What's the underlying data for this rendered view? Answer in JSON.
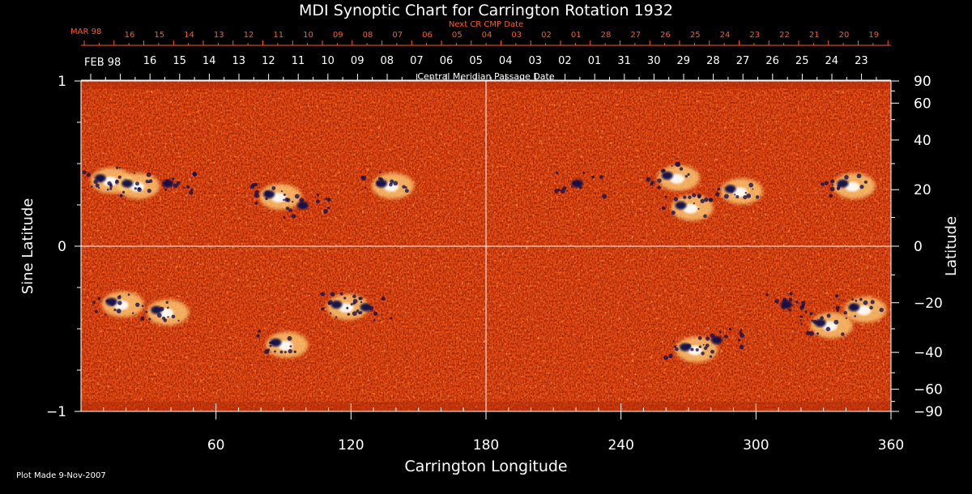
{
  "chart_data": {
    "type": "heatmap",
    "title": "MDI Synoptic Chart for Carrington Rotation 1932",
    "xlabel": "Carrington Longitude",
    "ylabel_left": "Sine Latitude",
    "ylabel_right": "Latitude",
    "xlim": [
      0,
      360
    ],
    "ylim_sine": [
      -1,
      1
    ],
    "x_ticks": [
      60,
      120,
      180,
      240,
      300,
      360
    ],
    "y_ticks_left": [
      {
        "value": 1,
        "label": "1"
      },
      {
        "value": 0,
        "label": "0"
      },
      {
        "value": -1,
        "label": "−1"
      }
    ],
    "y_ticks_right": [
      {
        "lat": 90,
        "label": "90"
      },
      {
        "lat": 60,
        "label": "60"
      },
      {
        "lat": 40,
        "label": "40"
      },
      {
        "lat": 20,
        "label": "20"
      },
      {
        "lat": 0,
        "label": "0"
      },
      {
        "lat": -20,
        "label": "−20"
      },
      {
        "lat": -40,
        "label": "−40"
      },
      {
        "lat": -60,
        "label": "−60"
      },
      {
        "lat": -90,
        "label": "−90"
      }
    ],
    "top_axis_next": {
      "label": "Next CR CMP Date",
      "month_label": "MAR 98",
      "dates": [
        "16",
        "15",
        "14",
        "13",
        "12",
        "11",
        "10",
        "09",
        "08",
        "07",
        "06",
        "05",
        "04",
        "03",
        "02",
        "01",
        "28",
        "27",
        "26",
        "25",
        "24",
        "23",
        "22",
        "21",
        "20",
        "19"
      ]
    },
    "top_axis_cmp": {
      "label": "Central Meridian Passage Date",
      "month_label": "FEB 98",
      "dates": [
        "16",
        "15",
        "14",
        "13",
        "12",
        "11",
        "10",
        "09",
        "08",
        "07",
        "06",
        "05",
        "04",
        "03",
        "02",
        "01",
        "31",
        "30",
        "29",
        "28",
        "27",
        "26",
        "25",
        "24",
        "23"
      ]
    },
    "grid_lines": {
      "longitude": 180,
      "sine_latitude": 0
    },
    "colormap": [
      "#0a0a50",
      "#8a1200",
      "#e03a0c",
      "#ff6a1a",
      "#ffd27a",
      "#ffffff"
    ],
    "active_regions": [
      {
        "lon": 10,
        "lat": 24,
        "polarity": "mixed"
      },
      {
        "lon": 22,
        "lat": 22,
        "polarity": "mixed"
      },
      {
        "lon": 40,
        "lat": 22,
        "polarity": "negative"
      },
      {
        "lon": 85,
        "lat": 18,
        "polarity": "mixed"
      },
      {
        "lon": 100,
        "lat": 14,
        "polarity": "negative"
      },
      {
        "lon": 135,
        "lat": 22,
        "polarity": "mixed"
      },
      {
        "lon": 222,
        "lat": 22,
        "polarity": "negative"
      },
      {
        "lon": 262,
        "lat": 25,
        "polarity": "mixed"
      },
      {
        "lon": 268,
        "lat": 14,
        "polarity": "mixed"
      },
      {
        "lon": 290,
        "lat": 20,
        "polarity": "mixed"
      },
      {
        "lon": 340,
        "lat": 22,
        "polarity": "mixed"
      },
      {
        "lon": 15,
        "lat": -20,
        "polarity": "mixed"
      },
      {
        "lon": 35,
        "lat": -23,
        "polarity": "mixed"
      },
      {
        "lon": 88,
        "lat": -36,
        "polarity": "mixed"
      },
      {
        "lon": 115,
        "lat": -21,
        "polarity": "mixed"
      },
      {
        "lon": 128,
        "lat": -22,
        "polarity": "negative"
      },
      {
        "lon": 270,
        "lat": -38,
        "polarity": "mixed"
      },
      {
        "lon": 284,
        "lat": -35,
        "polarity": "negative"
      },
      {
        "lon": 315,
        "lat": -21,
        "polarity": "negative"
      },
      {
        "lon": 330,
        "lat": -28,
        "polarity": "mixed"
      },
      {
        "lon": 345,
        "lat": -22,
        "polarity": "mixed"
      }
    ]
  },
  "footer": {
    "plot_made": "Plot Made  9-Nov-2007"
  }
}
